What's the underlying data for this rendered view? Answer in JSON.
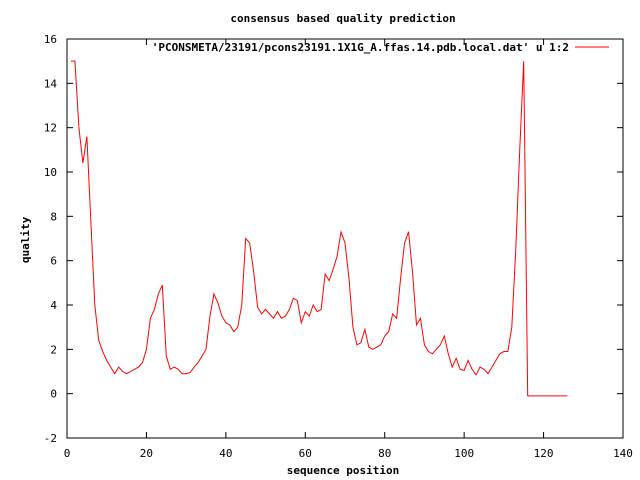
{
  "chart_data": {
    "type": "line",
    "title": "consensus based quality prediction",
    "xlabel": "sequence position",
    "ylabel": "quality",
    "xlim": [
      0,
      140
    ],
    "ylim": [
      -2,
      16
    ],
    "x_ticks": [
      0,
      20,
      40,
      60,
      80,
      100,
      120,
      140
    ],
    "y_ticks": [
      -2,
      0,
      2,
      4,
      6,
      8,
      10,
      12,
      14,
      16
    ],
    "grid": false,
    "legend_position": "top-right",
    "series": [
      {
        "name": "'PCONSMETA/23191/pcons23191.1X1G_A.ffas.14.pdb.local.dat' u 1:2",
        "color": "#ff0000",
        "points": [
          [
            1,
            15.0
          ],
          [
            2,
            15.0
          ],
          [
            3,
            12.0
          ],
          [
            4,
            10.4
          ],
          [
            5,
            11.6
          ],
          [
            6,
            7.8
          ],
          [
            7,
            4.0
          ],
          [
            8,
            2.4
          ],
          [
            9,
            1.9
          ],
          [
            10,
            1.5
          ],
          [
            11,
            1.2
          ],
          [
            12,
            0.9
          ],
          [
            13,
            1.2
          ],
          [
            14,
            1.0
          ],
          [
            15,
            0.9
          ],
          [
            16,
            1.0
          ],
          [
            17,
            1.1
          ],
          [
            18,
            1.2
          ],
          [
            19,
            1.4
          ],
          [
            20,
            2.0
          ],
          [
            21,
            3.4
          ],
          [
            22,
            3.8
          ],
          [
            23,
            4.5
          ],
          [
            24,
            4.9
          ],
          [
            25,
            1.7
          ],
          [
            26,
            1.1
          ],
          [
            27,
            1.2
          ],
          [
            28,
            1.1
          ],
          [
            29,
            0.9
          ],
          [
            30,
            0.9
          ],
          [
            31,
            0.95
          ],
          [
            32,
            1.2
          ],
          [
            33,
            1.4
          ],
          [
            34,
            1.7
          ],
          [
            35,
            2.0
          ],
          [
            36,
            3.5
          ],
          [
            37,
            4.5
          ],
          [
            38,
            4.1
          ],
          [
            39,
            3.5
          ],
          [
            40,
            3.2
          ],
          [
            41,
            3.1
          ],
          [
            42,
            2.8
          ],
          [
            43,
            3.0
          ],
          [
            44,
            4.0
          ],
          [
            45,
            7.0
          ],
          [
            46,
            6.8
          ],
          [
            47,
            5.5
          ],
          [
            48,
            3.9
          ],
          [
            49,
            3.6
          ],
          [
            50,
            3.8
          ],
          [
            51,
            3.6
          ],
          [
            52,
            3.4
          ],
          [
            53,
            3.7
          ],
          [
            54,
            3.4
          ],
          [
            55,
            3.5
          ],
          [
            56,
            3.8
          ],
          [
            57,
            4.3
          ],
          [
            58,
            4.2
          ],
          [
            59,
            3.2
          ],
          [
            60,
            3.7
          ],
          [
            61,
            3.5
          ],
          [
            62,
            4.0
          ],
          [
            63,
            3.7
          ],
          [
            64,
            3.8
          ],
          [
            65,
            5.4
          ],
          [
            66,
            5.1
          ],
          [
            67,
            5.6
          ],
          [
            68,
            6.2
          ],
          [
            69,
            7.3
          ],
          [
            70,
            6.8
          ],
          [
            71,
            5.2
          ],
          [
            72,
            3.0
          ],
          [
            73,
            2.2
          ],
          [
            74,
            2.3
          ],
          [
            75,
            2.9
          ],
          [
            76,
            2.1
          ],
          [
            77,
            2.0
          ],
          [
            78,
            2.1
          ],
          [
            79,
            2.2
          ],
          [
            80,
            2.6
          ],
          [
            81,
            2.8
          ],
          [
            82,
            3.6
          ],
          [
            83,
            3.4
          ],
          [
            84,
            5.2
          ],
          [
            85,
            6.8
          ],
          [
            86,
            7.3
          ],
          [
            87,
            5.5
          ],
          [
            88,
            3.1
          ],
          [
            89,
            3.4
          ],
          [
            90,
            2.2
          ],
          [
            91,
            1.9
          ],
          [
            92,
            1.8
          ],
          [
            93,
            2.0
          ],
          [
            94,
            2.2
          ],
          [
            95,
            2.6
          ],
          [
            96,
            1.8
          ],
          [
            97,
            1.2
          ],
          [
            98,
            1.6
          ],
          [
            99,
            1.1
          ],
          [
            100,
            1.05
          ],
          [
            101,
            1.5
          ],
          [
            102,
            1.1
          ],
          [
            103,
            0.85
          ],
          [
            104,
            1.2
          ],
          [
            105,
            1.1
          ],
          [
            106,
            0.9
          ],
          [
            107,
            1.2
          ],
          [
            108,
            1.5
          ],
          [
            109,
            1.8
          ],
          [
            110,
            1.9
          ],
          [
            111,
            1.9
          ],
          [
            112,
            3.0
          ],
          [
            113,
            6.5
          ],
          [
            114,
            11.0
          ],
          [
            115,
            15.0
          ],
          [
            116,
            -0.1
          ],
          [
            120,
            -0.1
          ],
          [
            126,
            -0.1
          ]
        ]
      }
    ]
  }
}
